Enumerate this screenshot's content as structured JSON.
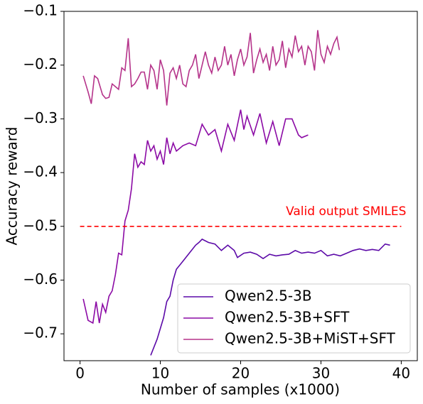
{
  "chart_data": {
    "type": "line",
    "xlabel": "Number of samples (x1000)",
    "ylabel": "Accuracy reward",
    "xlim": [
      -2,
      42
    ],
    "ylim": [
      -0.75,
      -0.1
    ],
    "xticks": [
      0,
      10,
      20,
      30,
      40
    ],
    "yticks": [
      {
        "value": -0.7,
        "label": "−0.7"
      },
      {
        "value": -0.6,
        "label": "−0.6"
      },
      {
        "value": -0.5,
        "label": "−0.5"
      },
      {
        "value": -0.4,
        "label": "−0.4"
      },
      {
        "value": -0.3,
        "label": "−0.3"
      },
      {
        "value": -0.2,
        "label": "−0.2"
      },
      {
        "value": -0.1,
        "label": "−0.1"
      }
    ],
    "legend": "lower right",
    "hline": {
      "y": -0.5,
      "x": [
        0,
        40
      ],
      "color": "#ff0000",
      "label": "Valid output SMILES"
    },
    "series": [
      {
        "name": "Qwen2.5-3B",
        "color": "#5c0aa8",
        "x": [
          8.8,
          9.6,
          10.4,
          10.8,
          11.2,
          11.6,
          12.0,
          12.8,
          13.6,
          14.4,
          14.8,
          15.2,
          16.0,
          16.8,
          17.6,
          18.4,
          19.2,
          19.6,
          20.4,
          21.2,
          22.0,
          22.8,
          23.6,
          24.4,
          25.2,
          26.0,
          26.8,
          27.6,
          28.4,
          29.2,
          30.0,
          30.8,
          31.6,
          32.4,
          33.2,
          34.0,
          34.8,
          35.6,
          36.4,
          37.2,
          38.0,
          38.6
        ],
        "values": [
          -0.74,
          -0.71,
          -0.67,
          -0.64,
          -0.63,
          -0.6,
          -0.58,
          -0.565,
          -0.55,
          -0.535,
          -0.53,
          -0.524,
          -0.53,
          -0.533,
          -0.545,
          -0.535,
          -0.545,
          -0.558,
          -0.55,
          -0.548,
          -0.552,
          -0.56,
          -0.552,
          -0.555,
          -0.553,
          -0.552,
          -0.545,
          -0.55,
          -0.548,
          -0.55,
          -0.545,
          -0.555,
          -0.552,
          -0.555,
          -0.55,
          -0.545,
          -0.542,
          -0.545,
          -0.543,
          -0.545,
          -0.533,
          -0.535
        ]
      },
      {
        "name": "Qwen2.5-3B+SFT",
        "color": "#8b0aa5",
        "x": [
          0.4,
          1.0,
          1.6,
          2.0,
          2.4,
          2.8,
          3.2,
          3.6,
          4.0,
          4.4,
          4.8,
          5.2,
          5.6,
          6.0,
          6.4,
          6.8,
          7.2,
          7.6,
          8.0,
          8.4,
          8.8,
          9.2,
          9.6,
          10.0,
          10.4,
          10.8,
          11.2,
          11.6,
          12.0,
          12.8,
          13.6,
          14.4,
          15.2,
          16.0,
          16.8,
          17.6,
          18.4,
          19.2,
          20.0,
          20.4,
          20.8,
          21.6,
          22.4,
          23.2,
          24.0,
          24.8,
          25.6,
          26.4,
          27.2,
          27.6,
          28.4
        ],
        "values": [
          -0.635,
          -0.675,
          -0.68,
          -0.64,
          -0.68,
          -0.645,
          -0.66,
          -0.63,
          -0.62,
          -0.59,
          -0.55,
          -0.553,
          -0.49,
          -0.47,
          -0.43,
          -0.365,
          -0.39,
          -0.38,
          -0.385,
          -0.34,
          -0.36,
          -0.35,
          -0.375,
          -0.36,
          -0.385,
          -0.335,
          -0.365,
          -0.345,
          -0.36,
          -0.35,
          -0.345,
          -0.35,
          -0.31,
          -0.33,
          -0.32,
          -0.36,
          -0.31,
          -0.34,
          -0.283,
          -0.32,
          -0.295,
          -0.33,
          -0.29,
          -0.345,
          -0.305,
          -0.35,
          -0.3,
          -0.3,
          -0.33,
          -0.335,
          -0.33
        ]
      },
      {
        "name": "Qwen2.5-3B+MiST+SFT",
        "color": "#b5338a",
        "x": [
          0.4,
          1.0,
          1.4,
          1.8,
          2.2,
          2.8,
          3.2,
          3.6,
          4.0,
          4.4,
          4.8,
          5.2,
          5.6,
          6.0,
          6.4,
          6.8,
          7.2,
          7.6,
          8.0,
          8.4,
          8.8,
          9.2,
          9.6,
          10.0,
          10.4,
          10.8,
          11.2,
          11.6,
          12.0,
          12.4,
          12.8,
          13.2,
          13.6,
          14.0,
          14.4,
          14.8,
          15.2,
          15.6,
          16.0,
          16.4,
          16.8,
          17.2,
          17.6,
          18.0,
          18.4,
          18.8,
          19.2,
          19.6,
          20.0,
          20.4,
          20.8,
          21.2,
          21.6,
          22.0,
          22.4,
          22.8,
          23.2,
          23.6,
          24.0,
          24.4,
          24.8,
          25.2,
          25.6,
          26.0,
          26.4,
          26.8,
          27.2,
          27.6,
          28.0,
          28.4,
          28.8,
          29.2,
          29.6,
          30.0,
          30.4,
          30.8,
          31.2,
          31.6,
          32.0,
          32.3
        ],
        "values": [
          -0.22,
          -0.25,
          -0.272,
          -0.22,
          -0.225,
          -0.255,
          -0.262,
          -0.26,
          -0.235,
          -0.24,
          -0.245,
          -0.205,
          -0.21,
          -0.15,
          -0.24,
          -0.235,
          -0.225,
          -0.213,
          -0.213,
          -0.245,
          -0.2,
          -0.21,
          -0.245,
          -0.19,
          -0.21,
          -0.275,
          -0.215,
          -0.205,
          -0.225,
          -0.2,
          -0.235,
          -0.24,
          -0.21,
          -0.2,
          -0.18,
          -0.225,
          -0.2,
          -0.175,
          -0.2,
          -0.215,
          -0.185,
          -0.21,
          -0.2,
          -0.165,
          -0.2,
          -0.18,
          -0.22,
          -0.19,
          -0.17,
          -0.2,
          -0.185,
          -0.14,
          -0.215,
          -0.19,
          -0.17,
          -0.195,
          -0.18,
          -0.21,
          -0.165,
          -0.2,
          -0.19,
          -0.155,
          -0.205,
          -0.17,
          -0.185,
          -0.145,
          -0.175,
          -0.165,
          -0.2,
          -0.165,
          -0.175,
          -0.21,
          -0.135,
          -0.18,
          -0.195,
          -0.165,
          -0.18,
          -0.16,
          -0.148,
          -0.172
        ]
      }
    ]
  }
}
